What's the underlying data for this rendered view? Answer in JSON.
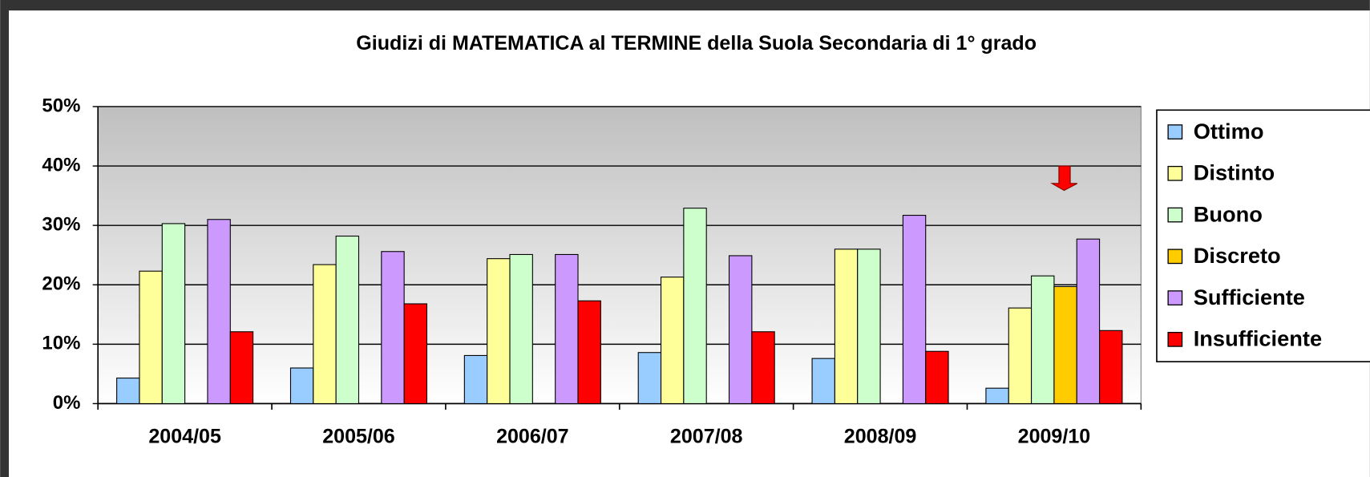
{
  "chart_data": {
    "type": "bar",
    "title": "Giudizi di MATEMATICA al TERMINE della Suola Secondaria di 1° grado",
    "categories": [
      "2004/05",
      "2005/06",
      "2006/07",
      "2007/08",
      "2008/09",
      "2009/10"
    ],
    "series": [
      {
        "name": "Ottimo",
        "color": "#99ccff",
        "values": [
          4.3,
          6,
          8.1,
          8.6,
          7.6,
          2.6
        ]
      },
      {
        "name": "Distinto",
        "color": "#ffff99",
        "values": [
          22.3,
          23.4,
          24.4,
          21.3,
          26,
          16.1
        ]
      },
      {
        "name": "Buono",
        "color": "#ccffcc",
        "values": [
          30.3,
          28.2,
          25.1,
          32.9,
          26,
          21.5
        ]
      },
      {
        "name": "Discreto",
        "color": "#ffcc00",
        "values": [
          null,
          null,
          null,
          null,
          null,
          19.7
        ]
      },
      {
        "name": "Sufficiente",
        "color": "#cc99ff",
        "values": [
          31,
          25.6,
          25.1,
          24.9,
          31.7,
          27.7
        ]
      },
      {
        "name": "Insufficiente",
        "color": "#ff0000",
        "values": [
          12.1,
          16.8,
          17.3,
          12.1,
          8.8,
          12.3
        ]
      }
    ],
    "ylim": [
      0,
      50
    ],
    "yticks": [
      {
        "value": 0,
        "label": "0%"
      },
      {
        "value": 10,
        "label": "10%"
      },
      {
        "value": 20,
        "label": "20%"
      },
      {
        "value": 30,
        "label": "30%"
      },
      {
        "value": 40,
        "label": "40%"
      },
      {
        "value": 50,
        "label": "50%"
      }
    ],
    "grid": true,
    "legend": "right"
  }
}
